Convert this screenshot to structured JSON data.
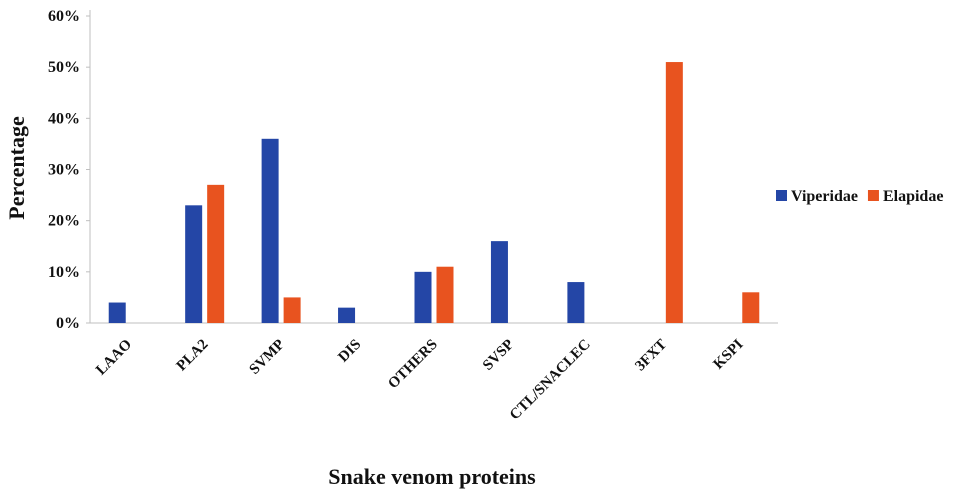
{
  "chart_data": {
    "type": "bar",
    "title": "",
    "xlabel": "Snake venom proteins",
    "ylabel": "Percentage",
    "categories": [
      "LAAO",
      "PLA2",
      "SVMP",
      "DIS",
      "OTHERS",
      "SVSP",
      "CTL/SNACLEC",
      "3FXT",
      "KSPI"
    ],
    "series": [
      {
        "name": "Viperidae",
        "color": "#2446a6",
        "values": [
          4,
          23,
          36,
          3,
          10,
          16,
          8,
          null,
          null
        ]
      },
      {
        "name": "Elapidae",
        "color": "#e8531f",
        "values": [
          null,
          27,
          5,
          null,
          11,
          null,
          null,
          51,
          6
        ]
      }
    ],
    "ylim": [
      0,
      60
    ],
    "yticks": [
      0,
      10,
      20,
      30,
      40,
      50,
      60
    ],
    "ytick_labels": [
      "0%",
      "10%",
      "20%",
      "30%",
      "40%",
      "50%",
      "60%"
    ],
    "grid": false,
    "legend_position": "right"
  }
}
